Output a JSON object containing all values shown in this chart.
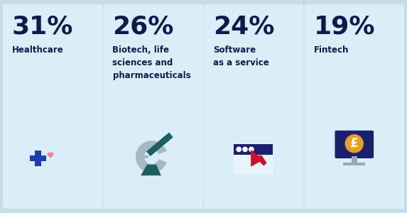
{
  "outer_bg": "#c8dce8",
  "panel_color": "#daeef8",
  "sectors": [
    {
      "percent": "31%",
      "label": "Healthcare",
      "icon": "healthcare"
    },
    {
      "percent": "26%",
      "label": "Biotech, life\nsciences and\npharmaceuticals",
      "icon": "biotech"
    },
    {
      "percent": "24%",
      "label": "Software\nas a service",
      "icon": "software"
    },
    {
      "percent": "19%",
      "label": "Fintech",
      "icon": "fintech"
    }
  ],
  "percent_color": "#0d1b4b",
  "label_color": "#0d1b4b",
  "percent_fontsize": 26,
  "label_fontsize": 8.5,
  "blue_cross": "#1e3faf",
  "pink_heart": "#f0879a",
  "teal_scope": "#1a6060",
  "gray_scope": "#a8b8c8",
  "navy_screen": "#1a2070",
  "red_cursor": "#cc1030",
  "gold_coin": "#e8a020",
  "gray_monitor": "#9aa8b8"
}
